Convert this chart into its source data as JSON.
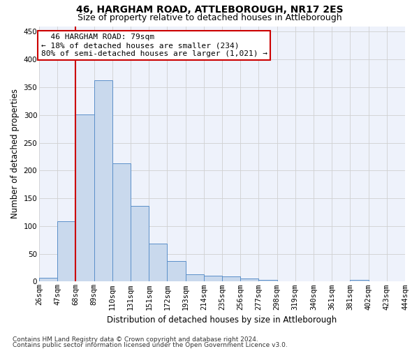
{
  "title": "46, HARGHAM ROAD, ATTLEBOROUGH, NR17 2ES",
  "subtitle": "Size of property relative to detached houses in Attleborough",
  "xlabel": "Distribution of detached houses by size in Attleborough",
  "ylabel": "Number of detached properties",
  "footnote1": "Contains HM Land Registry data © Crown copyright and database right 2024.",
  "footnote2": "Contains public sector information licensed under the Open Government Licence v3.0.",
  "annotation_line1": "46 HARGHAM ROAD: 79sqm",
  "annotation_line2": "← 18% of detached houses are smaller (234)",
  "annotation_line3": "80% of semi-detached houses are larger (1,021) →",
  "bar_values": [
    7,
    108,
    301,
    362,
    213,
    136,
    68,
    37,
    13,
    10,
    9,
    6,
    3,
    1,
    0,
    0,
    0,
    3,
    0,
    0
  ],
  "bin_labels": [
    "26sqm",
    "47sqm",
    "68sqm",
    "89sqm",
    "110sqm",
    "131sqm",
    "151sqm",
    "172sqm",
    "193sqm",
    "214sqm",
    "235sqm",
    "256sqm",
    "277sqm",
    "298sqm",
    "319sqm",
    "340sqm",
    "361sqm",
    "381sqm",
    "402sqm",
    "423sqm",
    "444sqm"
  ],
  "bar_color": "#c9d9ed",
  "bar_edge_color": "#5b8fc9",
  "grid_color": "#d0d0d0",
  "vline_color": "#cc0000",
  "annotation_box_edgecolor": "#cc0000",
  "ylim": [
    0,
    460
  ],
  "yticks": [
    0,
    50,
    100,
    150,
    200,
    250,
    300,
    350,
    400,
    450
  ],
  "bg_color": "#eef2fb",
  "title_fontsize": 10,
  "subtitle_fontsize": 9,
  "xlabel_fontsize": 8.5,
  "ylabel_fontsize": 8.5,
  "tick_fontsize": 7.5,
  "annotation_fontsize": 8,
  "footnote_fontsize": 6.5
}
